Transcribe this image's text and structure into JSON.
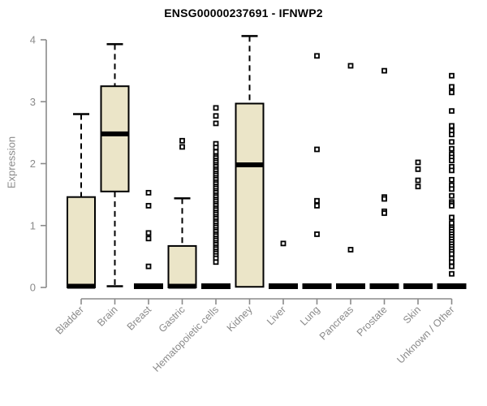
{
  "chart_data": {
    "type": "boxplot",
    "title": "ENSG00000237691 - IFNWP2",
    "ylabel": "Expression",
    "xlabel": "",
    "ylim": [
      0,
      4
    ],
    "yticks": [
      "0",
      "1",
      "2",
      "3",
      "4"
    ],
    "grid": false,
    "legend": "none",
    "categories": [
      "Bladder",
      "Brain",
      "Breast",
      "Gastric",
      "Hematopoietic cells",
      "Kidney",
      "Liver",
      "Lung",
      "Pancreas",
      "Prostate",
      "Skin",
      "Unknown / Other"
    ],
    "boxes": [
      {
        "category": "Bladder",
        "whisker_low": 0,
        "q1": 0,
        "median": 0.02,
        "q3": 1.46,
        "whisker_high": 2.8,
        "outliers": []
      },
      {
        "category": "Brain",
        "whisker_low": 0.02,
        "q1": 1.55,
        "median": 2.48,
        "q3": 3.25,
        "whisker_high": 3.93,
        "outliers": []
      },
      {
        "category": "Breast",
        "whisker_low": 0,
        "q1": 0,
        "median": 0.02,
        "q3": 0.04,
        "whisker_high": 0.04,
        "outliers": [
          1.53,
          1.32,
          0.88,
          0.79,
          0.34
        ]
      },
      {
        "category": "Gastric",
        "whisker_low": 0,
        "q1": 0,
        "median": 0.02,
        "q3": 0.67,
        "whisker_high": 1.44,
        "outliers": [
          2.37,
          2.27
        ]
      },
      {
        "category": "Hematopoietic cells",
        "whisker_low": 0,
        "q1": 0,
        "median": 0.02,
        "q3": 0.04,
        "whisker_high": 0.04,
        "outliers": [
          2.9,
          2.77,
          2.65,
          2.32,
          2.26,
          2.19,
          2.12,
          2.09,
          2.05,
          2.02,
          1.98,
          1.95,
          1.91,
          1.88,
          1.84,
          1.81,
          1.77,
          1.74,
          1.7,
          1.67,
          1.63,
          1.6,
          1.56,
          1.53,
          1.49,
          1.46,
          1.42,
          1.39,
          1.35,
          1.32,
          1.28,
          1.25,
          1.21,
          1.18,
          1.14,
          1.11,
          1.07,
          1.04,
          1.0,
          0.97,
          0.93,
          0.9,
          0.86,
          0.83,
          0.79,
          0.76,
          0.72,
          0.69,
          0.65,
          0.62,
          0.58,
          0.55,
          0.51,
          0.47,
          0.41
        ]
      },
      {
        "category": "Kidney",
        "whisker_low": 0,
        "q1": 0.01,
        "median": 1.98,
        "q3": 2.97,
        "whisker_high": 4.06,
        "outliers": []
      },
      {
        "category": "Liver",
        "whisker_low": 0,
        "q1": 0,
        "median": 0.02,
        "q3": 0.04,
        "whisker_high": 0.04,
        "outliers": [
          0.71
        ]
      },
      {
        "category": "Lung",
        "whisker_low": 0,
        "q1": 0,
        "median": 0.02,
        "q3": 0.04,
        "whisker_high": 0.04,
        "outliers": [
          3.74,
          2.23,
          1.4,
          1.32,
          0.86
        ]
      },
      {
        "category": "Pancreas",
        "whisker_low": 0,
        "q1": 0,
        "median": 0.02,
        "q3": 0.04,
        "whisker_high": 0.04,
        "outliers": [
          3.58,
          0.61
        ]
      },
      {
        "category": "Prostate",
        "whisker_low": 0,
        "q1": 0,
        "median": 0.02,
        "q3": 0.04,
        "whisker_high": 0.04,
        "outliers": [
          3.5,
          1.46,
          1.43,
          1.23,
          1.2
        ]
      },
      {
        "category": "Skin",
        "whisker_low": 0,
        "q1": 0,
        "median": 0.02,
        "q3": 0.04,
        "whisker_high": 0.04,
        "outliers": [
          2.02,
          1.91,
          1.73,
          1.63
        ]
      },
      {
        "category": "Unknown / Other",
        "whisker_low": 0,
        "q1": 0,
        "median": 0.02,
        "q3": 0.04,
        "whisker_high": 0.04,
        "outliers": [
          3.42,
          3.24,
          3.15,
          2.85,
          2.61,
          2.53,
          2.47,
          2.35,
          2.24,
          2.15,
          2.1,
          2.05,
          1.95,
          1.89,
          1.74,
          1.65,
          1.59,
          1.48,
          1.38,
          1.35,
          1.32,
          1.13,
          1.04,
          0.97,
          0.94,
          0.9,
          0.86,
          0.82,
          0.78,
          0.74,
          0.7,
          0.66,
          0.62,
          0.58,
          0.54,
          0.47,
          0.41,
          0.34,
          0.22
        ]
      }
    ],
    "style": {
      "box_fill": "#EBE5C8",
      "line_color": "#000000",
      "axis_color": "#8A8A8A",
      "title_color": "#000000",
      "background": "#FFFFFF"
    }
  }
}
